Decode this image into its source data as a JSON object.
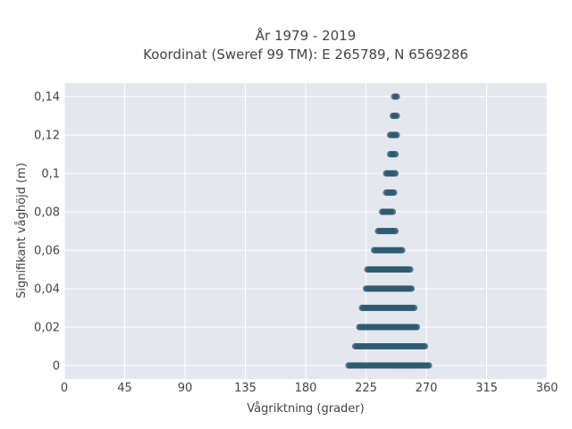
{
  "chart_data": {
    "type": "scatter",
    "title": "År 1979 - 2019",
    "subtitle": "Koordinat (Sweref 99 TM): E 265789, N 6569286",
    "xlabel": "Vågriktning (grader)",
    "ylabel": "Signifikant våghöjd (m)",
    "xlim": [
      0,
      360
    ],
    "ylim": [
      -0.007,
      0.147
    ],
    "x_ticks": [
      {
        "value": 0,
        "label": "0"
      },
      {
        "value": 45,
        "label": "45"
      },
      {
        "value": 90,
        "label": "90"
      },
      {
        "value": 135,
        "label": "135"
      },
      {
        "value": 180,
        "label": "180"
      },
      {
        "value": 225,
        "label": "225"
      },
      {
        "value": 270,
        "label": "270"
      },
      {
        "value": 315,
        "label": "315"
      },
      {
        "value": 360,
        "label": "360"
      }
    ],
    "y_ticks": [
      {
        "value": 0,
        "label": "0"
      },
      {
        "value": 0.02,
        "label": "0,02"
      },
      {
        "value": 0.04,
        "label": "0,04"
      },
      {
        "value": 0.06,
        "label": "0,06"
      },
      {
        "value": 0.08,
        "label": "0,08"
      },
      {
        "value": 0.1,
        "label": "0,1"
      },
      {
        "value": 0.12,
        "label": "0,12"
      },
      {
        "value": 0.14,
        "label": "0,14"
      }
    ],
    "grid": true,
    "marker_color": "#2f5a6f",
    "plot_background": "#e5e7ef",
    "point_bands": [
      {
        "y": 0.0,
        "x_min": 212,
        "x_max": 272
      },
      {
        "y": 0.01,
        "x_min": 217,
        "x_max": 269
      },
      {
        "y": 0.02,
        "x_min": 220,
        "x_max": 263
      },
      {
        "y": 0.03,
        "x_min": 222,
        "x_max": 261
      },
      {
        "y": 0.04,
        "x_min": 225,
        "x_max": 259
      },
      {
        "y": 0.05,
        "x_min": 226,
        "x_max": 258
      },
      {
        "y": 0.06,
        "x_min": 231,
        "x_max": 252
      },
      {
        "y": 0.07,
        "x_min": 234,
        "x_max": 247
      },
      {
        "y": 0.08,
        "x_min": 237,
        "x_max": 245
      },
      {
        "y": 0.09,
        "x_min": 240,
        "x_max": 246
      },
      {
        "y": 0.1,
        "x_min": 240,
        "x_max": 247
      },
      {
        "y": 0.11,
        "x_min": 243,
        "x_max": 247
      },
      {
        "y": 0.12,
        "x_min": 243,
        "x_max": 248
      },
      {
        "y": 0.13,
        "x_min": 245,
        "x_max": 248
      },
      {
        "y": 0.14,
        "x_min": 246,
        "x_max": 248
      }
    ]
  }
}
